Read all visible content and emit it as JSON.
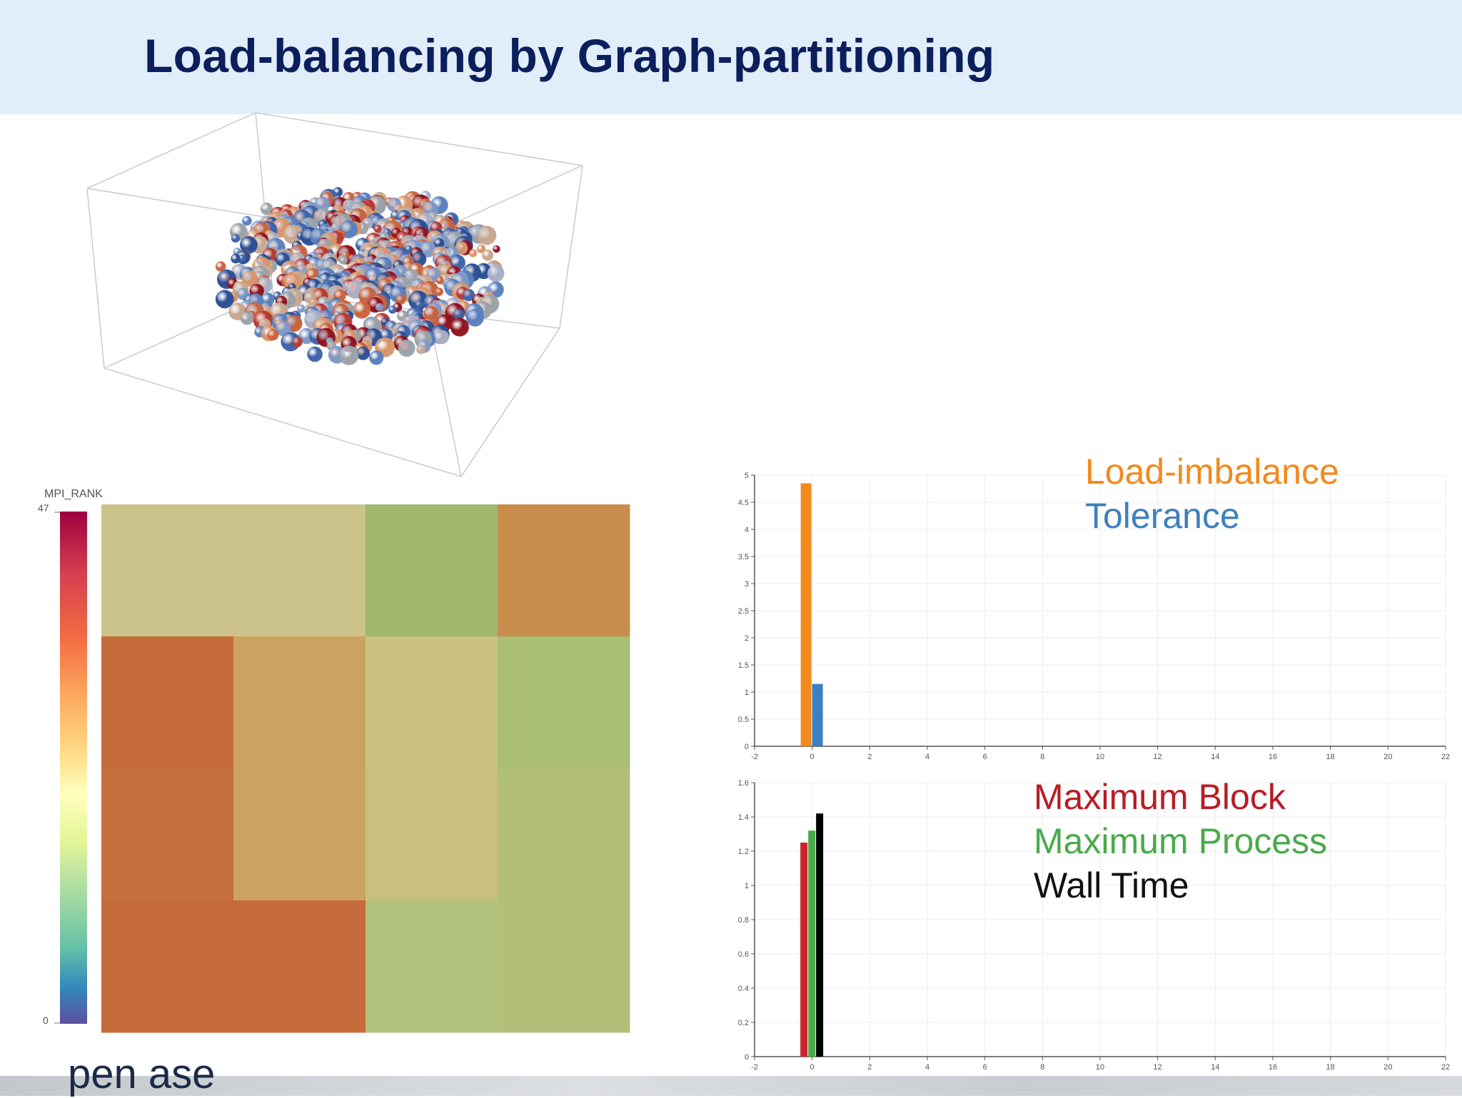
{
  "slide": {
    "title": "Load-balancing by Graph-partitioning",
    "footer_fragment": "pen ase"
  },
  "colorbar": {
    "title": "MPI_RANK",
    "max_label": "47",
    "min_label": "0",
    "colormap": "spectral"
  },
  "legend_top": {
    "items": [
      {
        "label": "Load-imbalance",
        "color": "#f28a1c"
      },
      {
        "label": "Tolerance",
        "color": "#3f7fbf"
      }
    ]
  },
  "legend_bottom": {
    "items": [
      {
        "label": "Maximum Block",
        "color": "#b81c24"
      },
      {
        "label": "Maximum Process",
        "color": "#4aaa4a"
      },
      {
        "label": "Wall Time",
        "color": "#111111"
      }
    ]
  },
  "chart_data": [
    {
      "type": "bar",
      "xlim": [
        -2,
        22
      ],
      "xticks": [
        "-2",
        "0",
        "2",
        "4",
        "6",
        "8",
        "10",
        "12",
        "14",
        "16",
        "18",
        "20",
        "22"
      ],
      "ylim": [
        0,
        5
      ],
      "yticks": [
        "0",
        "0.5",
        "1",
        "1.5",
        "2",
        "2.5",
        "3",
        "3.5",
        "4",
        "4.5",
        "5"
      ],
      "grid": true,
      "legend_position": "top-right",
      "series": [
        {
          "name": "Load-imbalance",
          "x": [
            0
          ],
          "values": [
            4.85
          ],
          "color": "#f28a1c"
        },
        {
          "name": "Tolerance",
          "x": [
            0
          ],
          "values": [
            1.15
          ],
          "color": "#3f7fbf"
        }
      ]
    },
    {
      "type": "bar",
      "xlim": [
        -2,
        22
      ],
      "xticks": [
        "-2",
        "0",
        "2",
        "4",
        "6",
        "8",
        "10",
        "12",
        "14",
        "16",
        "18",
        "20",
        "22"
      ],
      "ylim": [
        0,
        1.6
      ],
      "yticks": [
        "0",
        "0.2",
        "0.4",
        "0.6",
        "0.8",
        "1",
        "1.2",
        "1.4",
        "1.6"
      ],
      "grid": true,
      "legend_position": "top-right",
      "series": [
        {
          "name": "Maximum Block",
          "x": [
            0
          ],
          "values": [
            1.25
          ],
          "color": "#d0222c"
        },
        {
          "name": "Maximum Process",
          "x": [
            0
          ],
          "values": [
            1.32
          ],
          "color": "#4aaa4a"
        },
        {
          "name": "Wall Time",
          "x": [
            0
          ],
          "values": [
            1.42
          ],
          "color": "#000000"
        }
      ]
    },
    {
      "type": "heatmap",
      "rows": 4,
      "cols": 4,
      "colors": [
        [
          "#cbc389",
          "#cbc389",
          "#a1b86c",
          "#c88d4b"
        ],
        [
          "#c56a3a",
          "#cca261",
          "#cac182",
          "#a9bd74"
        ],
        [
          "#c56f3e",
          "#cca261",
          "#c9c07f",
          "#b3bf79"
        ],
        [
          "#c56b3b",
          "#c56b3b",
          "#b2c27c",
          "#b3bf79"
        ]
      ]
    }
  ]
}
